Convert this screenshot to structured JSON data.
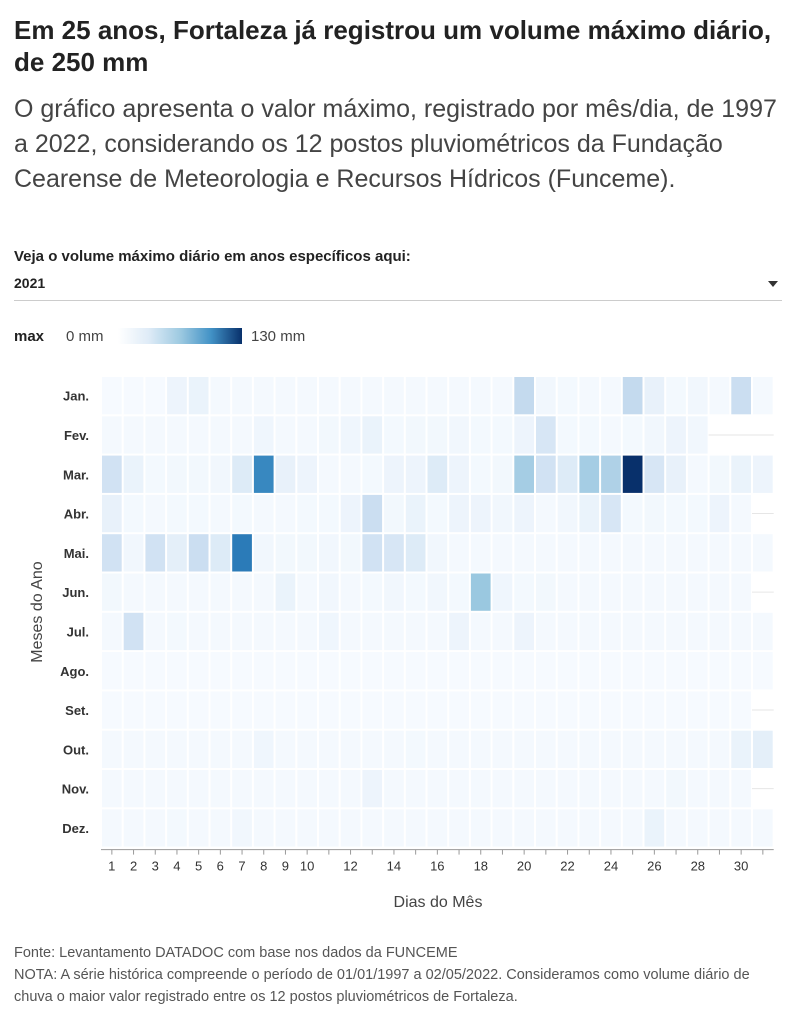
{
  "header": {
    "title": "Em 25 anos, Fortaleza já registrou um volume máximo diário, de 250 mm",
    "subtitle": "O gráfico apresenta o valor máximo, registrado por mês/dia, de 1997 a 2022, considerando os 12 postos pluviométricos da Fundação Cearense de Meteorologia e Recursos Hídricos (Funceme)."
  },
  "filter": {
    "label": "Veja o volume máximo diário em anos específicos aqui:",
    "selected": "2021"
  },
  "legend": {
    "title": "max",
    "min_label": "0 mm",
    "max_label": "130 mm"
  },
  "footer": {
    "source": "Fonte: Levantamento DATADOC com base nos dados da FUNCEME",
    "note": "NOTA: A série histórica compreende o período de 01/01/1997 a 02/05/2022. Consideramos como volume diário de chuva o maior valor registrado entre os 12 postos pluviométricos de Fortaleza."
  },
  "colors": {
    "scale_low": "#f7fbff",
    "scale_high": "#08306b"
  },
  "chart_data": {
    "type": "heatmap",
    "xlabel": "Dias do Mês",
    "ylabel": "Meses do Ano",
    "months": [
      "Jan.",
      "Fev.",
      "Mar.",
      "Abr.",
      "Mai.",
      "Jun.",
      "Jul.",
      "Ago.",
      "Set.",
      "Out.",
      "Nov.",
      "Dez."
    ],
    "x_ticks": [
      1,
      2,
      3,
      4,
      5,
      6,
      7,
      8,
      9,
      10,
      12,
      14,
      16,
      18,
      20,
      22,
      24,
      26,
      28,
      30
    ],
    "days_in_month": [
      31,
      28,
      31,
      30,
      31,
      30,
      31,
      31,
      30,
      31,
      30,
      31
    ],
    "value_range": [
      0,
      130
    ],
    "values": [
      [
        1,
        1,
        1,
        8,
        10,
        2,
        2,
        2,
        2,
        2,
        2,
        2,
        2,
        2,
        2,
        2,
        2,
        2,
        2,
        40,
        5,
        3,
        2,
        2,
        40,
        12,
        3,
        5,
        2,
        35,
        2
      ],
      [
        2,
        2,
        2,
        2,
        2,
        2,
        2,
        6,
        2,
        2,
        4,
        6,
        10,
        3,
        4,
        4,
        5,
        3,
        3,
        8,
        25,
        3,
        3,
        2,
        3,
        5,
        8,
        5
      ],
      [
        30,
        10,
        3,
        4,
        4,
        5,
        20,
        95,
        12,
        8,
        2,
        2,
        3,
        8,
        8,
        20,
        8,
        3,
        4,
        55,
        30,
        20,
        55,
        50,
        130,
        25,
        12,
        2,
        4,
        10,
        8
      ],
      [
        12,
        3,
        2,
        3,
        3,
        2,
        3,
        2,
        2,
        3,
        3,
        8,
        35,
        4,
        10,
        3,
        8,
        8,
        5,
        8,
        2,
        5,
        10,
        25,
        3,
        4,
        3,
        3,
        8,
        2
      ],
      [
        30,
        5,
        30,
        15,
        35,
        20,
        100,
        5,
        4,
        4,
        5,
        4,
        30,
        25,
        20,
        5,
        2,
        2,
        2,
        2,
        2,
        2,
        2,
        2,
        2,
        2,
        2,
        2,
        2,
        2,
        2
      ],
      [
        4,
        2,
        2,
        2,
        2,
        2,
        2,
        2,
        10,
        2,
        5,
        2,
        3,
        5,
        3,
        5,
        3,
        60,
        6,
        3,
        4,
        2,
        2,
        2,
        2,
        2,
        2,
        2,
        2,
        2
      ],
      [
        2,
        30,
        2,
        3,
        2,
        2,
        2,
        2,
        2,
        2,
        6,
        2,
        2,
        2,
        2,
        2,
        8,
        2,
        2,
        8,
        2,
        2,
        2,
        2,
        2,
        2,
        2,
        2,
        2,
        2,
        2
      ],
      [
        1,
        1,
        1,
        1,
        1,
        1,
        1,
        1,
        1,
        1,
        1,
        1,
        1,
        1,
        1,
        1,
        1,
        1,
        1,
        1,
        1,
        1,
        1,
        1,
        1,
        1,
        1,
        1,
        1,
        1,
        1
      ],
      [
        1,
        1,
        1,
        1,
        1,
        1,
        1,
        1,
        1,
        1,
        1,
        1,
        1,
        1,
        1,
        1,
        1,
        1,
        1,
        1,
        1,
        1,
        1,
        1,
        1,
        1,
        1,
        1,
        1,
        1
      ],
      [
        2,
        2,
        2,
        2,
        2,
        2,
        2,
        6,
        2,
        2,
        2,
        2,
        2,
        2,
        3,
        2,
        2,
        2,
        2,
        2,
        2,
        2,
        2,
        2,
        2,
        2,
        2,
        2,
        2,
        10,
        15
      ],
      [
        2,
        2,
        2,
        2,
        2,
        2,
        2,
        2,
        2,
        2,
        2,
        2,
        8,
        2,
        2,
        2,
        2,
        2,
        2,
        2,
        2,
        2,
        2,
        2,
        2,
        2,
        4,
        2,
        2,
        2
      ],
      [
        2,
        2,
        2,
        3,
        2,
        2,
        5,
        2,
        2,
        2,
        2,
        2,
        2,
        2,
        2,
        2,
        2,
        2,
        2,
        2,
        2,
        2,
        2,
        2,
        2,
        10,
        2,
        2,
        2,
        2,
        2
      ]
    ]
  }
}
